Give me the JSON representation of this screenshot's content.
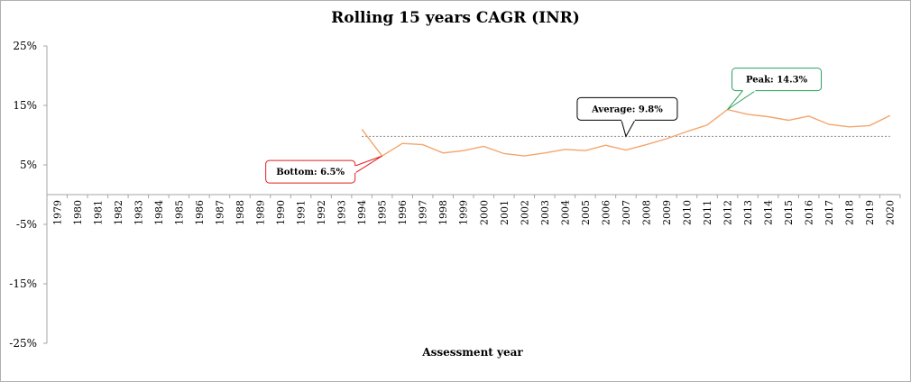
{
  "chart_data": {
    "type": "line",
    "title": "Rolling 15 years CAGR (INR)",
    "xlabel": "Assessment year",
    "ylabel": "",
    "ylim": [
      -25,
      25
    ],
    "y_ticks": [
      "25%",
      "15%",
      "5%",
      "-5%",
      "-15%",
      "-25%"
    ],
    "y_tick_values": [
      25,
      15,
      5,
      -5,
      -15,
      -25
    ],
    "categories": [
      "1979",
      "1980",
      "1981",
      "1982",
      "1983",
      "1984",
      "1985",
      "1986",
      "1987",
      "1988",
      "1989",
      "1990",
      "1991",
      "1992",
      "1993",
      "1994",
      "1995",
      "1996",
      "1997",
      "1998",
      "1999",
      "2000",
      "2001",
      "2002",
      "2003",
      "2004",
      "2005",
      "2006",
      "2007",
      "2008",
      "2009",
      "2010",
      "2011",
      "2012",
      "2013",
      "2014",
      "2015",
      "2016",
      "2017",
      "2018",
      "2019",
      "2020"
    ],
    "series": [
      {
        "name": "",
        "color": "#f4a56b",
        "values": [
          null,
          null,
          null,
          null,
          null,
          null,
          null,
          null,
          null,
          null,
          null,
          null,
          null,
          null,
          null,
          11.0,
          6.5,
          8.6,
          8.4,
          7.0,
          7.4,
          8.1,
          6.9,
          6.5,
          7.0,
          7.6,
          7.4,
          8.3,
          7.5,
          8.4,
          9.4,
          10.6,
          11.7,
          14.3,
          13.5,
          13.1,
          12.5,
          13.2,
          11.8,
          11.4,
          11.6,
          13.3
        ]
      }
    ],
    "average_line": {
      "value": 9.8,
      "color": "#888888"
    },
    "annotations": [
      {
        "label": "Bottom: 6.5%",
        "category": "1995",
        "value": 6.5,
        "border_color": "#e02020"
      },
      {
        "label": "Average: 9.8%",
        "category": "2007",
        "value": 9.8,
        "border_color": "#000000"
      },
      {
        "label": "Peak: 14.3%",
        "category": "2012",
        "value": 14.3,
        "border_color": "#2aa05a"
      }
    ],
    "legend": "none",
    "grid": false
  }
}
